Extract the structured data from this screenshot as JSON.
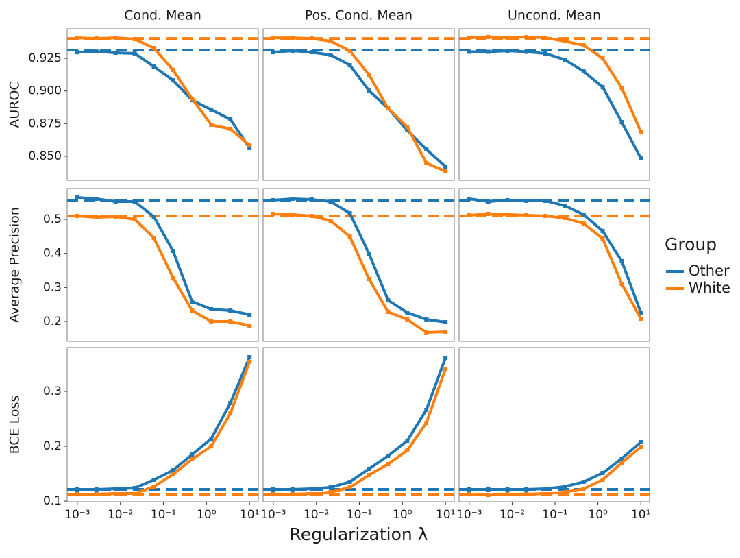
{
  "chart_data": [
    {
      "type": "line",
      "title": "Cond. Mean",
      "ylabel": "AUROC",
      "legend_title": "Group",
      "legend": "right",
      "log_x": true,
      "x": [
        0.001,
        0.00278,
        0.00774,
        0.0215,
        0.0599,
        0.167,
        0.464,
        1.29,
        3.59,
        10
      ],
      "xlim": [
        0.00058,
        16
      ],
      "ylim": [
        0.8316,
        0.9476
      ],
      "yticks": [
        {
          "value": 0.85,
          "label": "0.850"
        },
        0.875,
        {
          "value": 0.9,
          "label": "0.900"
        },
        0.925
      ],
      "series": [
        {
          "name": "Other",
          "color": "#1f77b4",
          "reference": 0.9313,
          "values": [
            0.9297,
            0.9302,
            0.9292,
            0.9287,
            0.9187,
            0.9082,
            0.893,
            0.8857,
            0.8783,
            0.8563
          ]
        },
        {
          "name": "White",
          "color": "#ff7f0e",
          "reference": 0.9402,
          "values": [
            0.9407,
            0.9402,
            0.9407,
            0.9397,
            0.9329,
            0.9161,
            0.8941,
            0.8741,
            0.871,
            0.8584
          ]
        }
      ]
    },
    {
      "type": "line",
      "title": "Pos. Cond. Mean",
      "log_x": true,
      "x": [
        0.001,
        0.00278,
        0.00774,
        0.0215,
        0.0599,
        0.167,
        0.464,
        1.29,
        3.59,
        10
      ],
      "xlim": [
        0.00058,
        16
      ],
      "ylim": [
        0.8316,
        0.9476
      ],
      "series": [
        {
          "color": "#1f77b4",
          "reference": 0.9313,
          "values": [
            0.9297,
            0.9308,
            0.9297,
            0.9276,
            0.9198,
            0.9003,
            0.8867,
            0.8699,
            0.8552,
            0.8421
          ]
        },
        {
          "color": "#ff7f0e",
          "reference": 0.9402,
          "values": [
            0.9407,
            0.9407,
            0.9402,
            0.9381,
            0.9308,
            0.9124,
            0.8867,
            0.8726,
            0.8448,
            0.8385
          ]
        }
      ]
    },
    {
      "type": "line",
      "title": "Uncond. Mean",
      "log_x": true,
      "x": [
        0.001,
        0.00278,
        0.00774,
        0.0215,
        0.0599,
        0.167,
        0.464,
        1.29,
        3.59,
        10
      ],
      "xlim": [
        0.00058,
        16
      ],
      "ylim": [
        0.8316,
        0.9476
      ],
      "series": [
        {
          "color": "#1f77b4",
          "reference": 0.9313,
          "values": [
            0.93,
            0.93,
            0.9308,
            0.93,
            0.9287,
            0.924,
            0.915,
            0.903,
            0.8762,
            0.8484
          ]
        },
        {
          "color": "#ff7f0e",
          "reference": 0.9402,
          "values": [
            0.9407,
            0.9413,
            0.9407,
            0.9413,
            0.9407,
            0.9381,
            0.935,
            0.925,
            0.9024,
            0.8689
          ]
        }
      ]
    },
    {
      "type": "line",
      "ylabel": "Average Precision",
      "log_x": true,
      "x": [
        0.001,
        0.00278,
        0.00774,
        0.0215,
        0.0599,
        0.167,
        0.464,
        1.29,
        3.59,
        10
      ],
      "xlim": [
        0.00058,
        16
      ],
      "ylim": [
        0.1416,
        0.5906
      ],
      "yticks": [
        0.2,
        0.3,
        0.4,
        0.5
      ],
      "series": [
        {
          "color": "#1f77b4",
          "reference": 0.5564,
          "values": [
            0.5644,
            0.5604,
            0.5523,
            0.5523,
            0.508,
            0.4074,
            0.2584,
            0.2363,
            0.2322,
            0.2201
          ]
        },
        {
          "color": "#ff7f0e",
          "reference": 0.51,
          "values": [
            0.51,
            0.506,
            0.508,
            0.5,
            0.4456,
            0.3289,
            0.2322,
            0.2,
            0.2,
            0.1879
          ]
        }
      ]
    },
    {
      "type": "line",
      "log_x": true,
      "x": [
        0.001,
        0.00278,
        0.00774,
        0.0215,
        0.0599,
        0.167,
        0.464,
        1.29,
        3.59,
        10
      ],
      "xlim": [
        0.00058,
        16
      ],
      "ylim": [
        0.1416,
        0.5906
      ],
      "series": [
        {
          "color": "#1f77b4",
          "reference": 0.5564,
          "values": [
            0.5564,
            0.5604,
            0.5584,
            0.5523,
            0.5181,
            0.3993,
            0.2624,
            0.2262,
            0.2061,
            0.198
          ]
        },
        {
          "color": "#ff7f0e",
          "reference": 0.51,
          "values": [
            0.5161,
            0.5141,
            0.51,
            0.496,
            0.4497,
            0.3248,
            0.2282,
            0.2061,
            0.1678,
            0.1698
          ]
        }
      ]
    },
    {
      "type": "line",
      "log_x": true,
      "x": [
        0.001,
        0.00278,
        0.00774,
        0.0215,
        0.0599,
        0.167,
        0.464,
        1.29,
        3.59,
        10
      ],
      "xlim": [
        0.00058,
        16
      ],
      "ylim": [
        0.1416,
        0.5906
      ],
      "series": [
        {
          "color": "#1f77b4",
          "reference": 0.5564,
          "values": [
            0.5604,
            0.5523,
            0.5564,
            0.5544,
            0.5544,
            0.5403,
            0.5141,
            0.4658,
            0.3772,
            0.2262
          ]
        },
        {
          "color": "#ff7f0e",
          "reference": 0.51,
          "values": [
            0.5121,
            0.5161,
            0.5141,
            0.5121,
            0.51,
            0.504,
            0.4879,
            0.4436,
            0.3108,
            0.2081
          ]
        }
      ]
    },
    {
      "type": "line",
      "ylabel": "BCE Loss",
      "log_x": true,
      "x": [
        0.001,
        0.00278,
        0.00774,
        0.0215,
        0.0599,
        0.167,
        0.464,
        1.29,
        3.59,
        10
      ],
      "xlim": [
        0.00058,
        16
      ],
      "ylim": [
        0.0988,
        0.38
      ],
      "yticks": [
        0.1,
        0.2,
        0.3
      ],
      "xticks": [
        {
          "value": 0.001,
          "label": "10⁻³"
        },
        {
          "value": 0.01,
          "label": "10⁻²"
        },
        {
          "value": 0.1,
          "label": "10⁻¹"
        },
        {
          "value": 1,
          "label": "10⁰"
        },
        {
          "value": 10,
          "label": "10¹"
        }
      ],
      "series": [
        {
          "color": "#1f77b4",
          "reference": 0.1213,
          "values": [
            0.1213,
            0.1213,
            0.1225,
            0.1238,
            0.1388,
            0.1563,
            0.185,
            0.2138,
            0.2788,
            0.3625
          ]
        },
        {
          "color": "#ff7f0e",
          "reference": 0.1125,
          "values": [
            0.1125,
            0.1125,
            0.1138,
            0.1138,
            0.1263,
            0.1488,
            0.1763,
            0.2,
            0.26,
            0.3538
          ]
        }
      ]
    },
    {
      "type": "line",
      "xlabel": "Regularization λ",
      "log_x": true,
      "x": [
        0.001,
        0.00278,
        0.00774,
        0.0215,
        0.0599,
        0.167,
        0.464,
        1.29,
        3.59,
        10
      ],
      "xlim": [
        0.00058,
        16
      ],
      "ylim": [
        0.0988,
        0.38
      ],
      "xticks": [
        {
          "value": 0.001,
          "label": "10⁻³"
        },
        {
          "value": 0.01,
          "label": "10⁻²"
        },
        {
          "value": 0.1,
          "label": "10⁻¹"
        },
        {
          "value": 1,
          "label": "10⁰"
        },
        {
          "value": 10,
          "label": "10¹"
        }
      ],
      "series": [
        {
          "color": "#1f77b4",
          "reference": 0.1213,
          "values": [
            0.1213,
            0.1213,
            0.1225,
            0.125,
            0.135,
            0.1588,
            0.1825,
            0.21,
            0.2663,
            0.3613
          ]
        },
        {
          "color": "#ff7f0e",
          "reference": 0.1125,
          "values": [
            0.1125,
            0.1125,
            0.1138,
            0.1163,
            0.125,
            0.1475,
            0.1675,
            0.1925,
            0.2425,
            0.3413
          ]
        }
      ]
    },
    {
      "type": "line",
      "log_x": true,
      "x": [
        0.001,
        0.00278,
        0.00774,
        0.0215,
        0.0599,
        0.167,
        0.464,
        1.29,
        3.59,
        10
      ],
      "xlim": [
        0.00058,
        16
      ],
      "ylim": [
        0.0988,
        0.38
      ],
      "xticks": [
        {
          "value": 0.001,
          "label": "10⁻³"
        },
        {
          "value": 0.01,
          "label": "10⁻²"
        },
        {
          "value": 0.1,
          "label": "10⁻¹"
        },
        {
          "value": 1,
          "label": "10⁰"
        },
        {
          "value": 10,
          "label": "10¹"
        }
      ],
      "series": [
        {
          "color": "#1f77b4",
          "reference": 0.1213,
          "values": [
            0.1213,
            0.1213,
            0.1213,
            0.1213,
            0.1225,
            0.1263,
            0.135,
            0.1513,
            0.1775,
            0.2075
          ]
        },
        {
          "color": "#ff7f0e",
          "reference": 0.1125,
          "values": [
            0.1125,
            0.1113,
            0.1125,
            0.1125,
            0.1138,
            0.1163,
            0.1225,
            0.1388,
            0.17,
            0.1988
          ]
        }
      ]
    }
  ]
}
